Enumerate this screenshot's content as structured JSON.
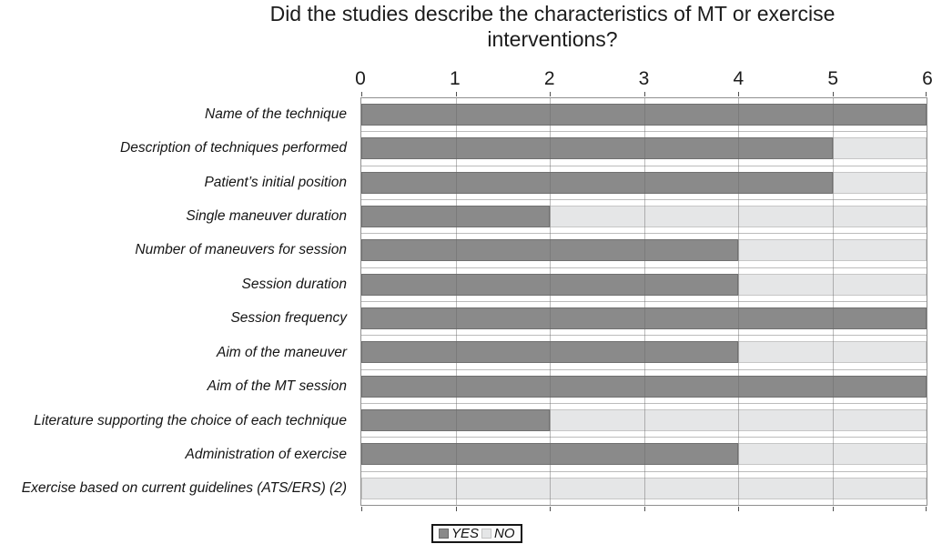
{
  "chart_data": {
    "type": "bar",
    "orientation": "horizontal",
    "stacked": true,
    "title": "Did the studies describe the characteristics of MT or exercise interventions?",
    "categories": [
      "Name of the technique",
      "Description of techniques performed",
      "Patient’s initial position",
      "Single maneuver duration",
      "Number of maneuvers for session",
      "Session duration",
      "Session frequency",
      "Aim of the maneuver",
      "Aim of the MT session",
      "Literature supporting the choice of each technique",
      "Administration of exercise",
      "Exercise based on current guidelines (ATS/ERS) (2)"
    ],
    "series": [
      {
        "name": "YES",
        "color": "#8a8a8a",
        "values": [
          6,
          5,
          5,
          2,
          4,
          4,
          6,
          4,
          6,
          2,
          4,
          0
        ]
      },
      {
        "name": "NO",
        "color": "#e5e6e7",
        "values": [
          0,
          1,
          1,
          4,
          2,
          2,
          0,
          2,
          0,
          4,
          2,
          6
        ]
      }
    ],
    "xlim": [
      0,
      6
    ],
    "x_ticks": [
      "0",
      "1",
      "2",
      "3",
      "4",
      "5",
      "6"
    ],
    "axis_position": "top",
    "grid": true,
    "legend_position": "bottom"
  }
}
